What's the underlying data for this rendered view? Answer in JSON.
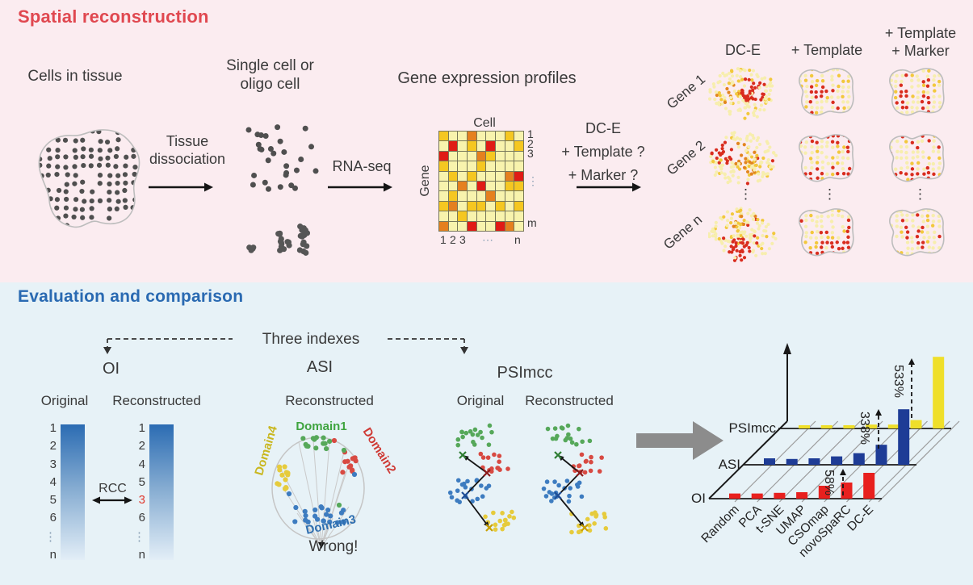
{
  "colors": {
    "top_bg": "#fbecf0",
    "bottom_bg": "#e7f2f7",
    "top_title": "#e04850",
    "bottom_title": "#2a6ab2",
    "ink": "#3a3a3a",
    "dot_gray": "#4f4f4f",
    "matrix": {
      "p": "#f8f3ad",
      "y": "#f5c721",
      "o": "#e5801f",
      "r": "#e01b16"
    },
    "oi_bar_top": "#2b6cb3",
    "oi_bar_bottom": "#e3eef7",
    "oi_highlight": "#e03a30",
    "domain1": "#3fa43f",
    "domain2": "#cf3a35",
    "domain3": "#2f6fb0",
    "domain4": "#c9b71f",
    "scatter": {
      "green": "#56a85a",
      "red": "#d84a42",
      "blue": "#3d7cc0",
      "yellow": "#e6cb3c"
    },
    "chart": {
      "oi": "#e8201e",
      "asi": "#1e3c96",
      "psimcc": "#efdf2a"
    },
    "arrow_gray": "#8c8c8c",
    "blob_pale": "#f7eeae",
    "blob_gold": "#f2c83c",
    "blob_orange": "#e2851f",
    "blob_red": "#d92c1e",
    "blob_outline": "#bdbdbd"
  },
  "top_panel": {
    "title": "Spatial reconstruction",
    "cells_in_tissue": "Cells in tissue",
    "single_cell_line1": "Single cell or",
    "single_cell_line2": "oligo cell",
    "arrow1_line1": "Tissue",
    "arrow1_line2": "dissociation",
    "arrow2_label": "RNA-seq",
    "profiles_title": "Gene expression profiles",
    "matrix": {
      "col_axis": "Cell",
      "row_axis": "Gene",
      "row_ticks": [
        "1",
        "2",
        "3",
        "⋮",
        "m"
      ],
      "col_ticks": [
        "1",
        "2",
        "3",
        "⋯",
        "n"
      ],
      "grid": [
        "yppopppyp",
        "prpyprppy",
        "rpppoyppp",
        "ypppypppp",
        "pypypppor",
        "ppoprppyy",
        "pypppoppp",
        "yopyypypy",
        "ppypppppp",
        "opprpprop"
      ]
    },
    "method": {
      "line1": "DC-E",
      "line2": "+ Template ?",
      "line3": "+ Marker ?"
    },
    "results": {
      "col1": "DC-E",
      "col2": "+ Template",
      "col3_line1": "+ Template",
      "col3_line2": "+ Marker",
      "row1": "Gene 1",
      "row2": "Gene 2",
      "row_dots": "⋮",
      "row3": "Gene n"
    }
  },
  "bottom_panel": {
    "title": "Evaluation and comparison",
    "three_indexes": "Three indexes",
    "oi": {
      "title": "OI",
      "left_label": "Original",
      "right_label": "Reconstructed",
      "left_ticks": [
        "1",
        "2",
        "3",
        "4",
        "5",
        "6",
        "⋮",
        "n"
      ],
      "right_ticks": [
        "1",
        "2",
        "4",
        "5",
        "3",
        "6",
        "⋮",
        "n"
      ],
      "right_highlight_index": 4,
      "rcc": "RCC"
    },
    "asi": {
      "title": "ASI",
      "subtitle": "Reconstructed",
      "domain1": "Domain1",
      "domain2": "Domain2",
      "domain3": "Domain3",
      "domain4": "Domain4",
      "wrong": "Wrong!"
    },
    "psimcc": {
      "title": "PSImcc",
      "left_label": "Original",
      "right_label": "Reconstructed"
    }
  },
  "chart_data": {
    "type": "bar",
    "projection": "3d-rows",
    "categories": [
      "Random",
      "PCA",
      "t-SNE",
      "UMAP",
      "CSOmap",
      "novoSpaRC",
      "DC-E"
    ],
    "series": [
      {
        "name": "OI",
        "color_key": "oi",
        "values": [
          0.08,
          0.08,
          0.09,
          0.1,
          0.2,
          0.25,
          0.4
        ]
      },
      {
        "name": "ASI",
        "color_key": "asi",
        "values": [
          0.1,
          0.09,
          0.1,
          0.13,
          0.18,
          0.31,
          0.86
        ]
      },
      {
        "name": "PSImcc",
        "color_key": "psimcc",
        "values": [
          0.05,
          0.05,
          0.05,
          0.06,
          0.06,
          0.13,
          1.11
        ]
      }
    ],
    "annotations": [
      {
        "series": "OI",
        "at": "novoSpaRC",
        "label": "58%"
      },
      {
        "series": "ASI",
        "at": "novoSpaRC",
        "label": "338%"
      },
      {
        "series": "PSImcc",
        "at": "novoSpaRC",
        "label": "533%"
      }
    ],
    "value_axis_visible": true,
    "value_ticks_visible": false,
    "legend_position": "row-labels-left"
  }
}
